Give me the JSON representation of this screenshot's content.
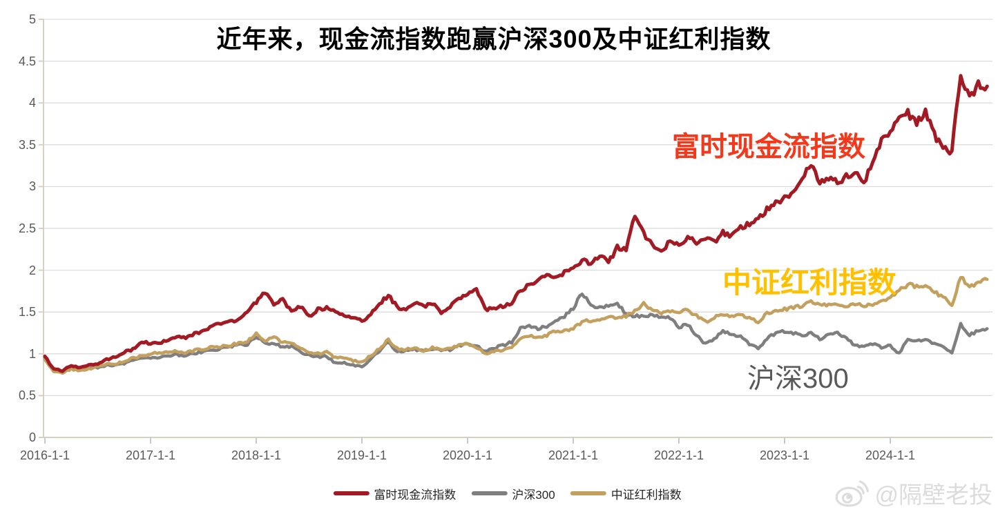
{
  "title": "近年来，现金流指数跑赢沪深300及中证红利指数",
  "annotations": {
    "cashflow": {
      "text": "富时现金流指数",
      "color": "#F2391C"
    },
    "dividend": {
      "text": "中证红利指数",
      "color": "#FFC000"
    },
    "csi300": {
      "text": "沪深300",
      "color": "#595959"
    }
  },
  "watermark": {
    "text": "@隔壁老投",
    "icon": "weibo-logo"
  },
  "colors": {
    "cashflow_line": "#A11A24",
    "csi300_line": "#7F7F7F",
    "dividend_line": "#C3A05E",
    "gridline": "#DCDCDC",
    "axis": "#D8D0C0",
    "tick": "#C9C9C9",
    "tick_text": "#595959"
  },
  "axes": {
    "y_ticks": [
      {
        "label": "5",
        "value": 5
      },
      {
        "label": "4.5",
        "value": 4.5
      },
      {
        "label": "4",
        "value": 4
      },
      {
        "label": "3.5",
        "value": 3.5
      },
      {
        "label": "3",
        "value": 3
      },
      {
        "label": "2.5",
        "value": 2.5
      },
      {
        "label": "2",
        "value": 2
      },
      {
        "label": "1.5",
        "value": 1.5
      },
      {
        "label": "1",
        "value": 1
      },
      {
        "label": "0.5",
        "value": 0.5
      },
      {
        "label": "0",
        "value": 0
      }
    ],
    "x_ticks": [
      "2016-1-1",
      "2017-1-1",
      "2018-1-1",
      "2019-1-1",
      "2020-1-1",
      "2021-1-1",
      "2022-1-1",
      "2023-1-1",
      "2024-1-1"
    ]
  },
  "legend": [
    {
      "label": "富时现金流指数",
      "color": "#A11A24"
    },
    {
      "label": "沪深300",
      "color": "#7F7F7F"
    },
    {
      "label": "中证红利指数",
      "color": "#C3A05E"
    }
  ],
  "chart_data": {
    "type": "line",
    "title": "近年来，现金流指数跑赢沪深300及中证红利指数",
    "xlabel": "",
    "ylabel": "",
    "ylim": [
      0,
      5
    ],
    "grid": "horizontal",
    "legend_position": "bottom",
    "x_unit": "month",
    "x": [
      "2016-01",
      "2016-02",
      "2016-03",
      "2016-04",
      "2016-05",
      "2016-06",
      "2016-07",
      "2016-08",
      "2016-09",
      "2016-10",
      "2016-11",
      "2016-12",
      "2017-01",
      "2017-02",
      "2017-03",
      "2017-04",
      "2017-05",
      "2017-06",
      "2017-07",
      "2017-08",
      "2017-09",
      "2017-10",
      "2017-11",
      "2017-12",
      "2018-01",
      "2018-02",
      "2018-03",
      "2018-04",
      "2018-05",
      "2018-06",
      "2018-07",
      "2018-08",
      "2018-09",
      "2018-10",
      "2018-11",
      "2018-12",
      "2019-01",
      "2019-02",
      "2019-03",
      "2019-04",
      "2019-05",
      "2019-06",
      "2019-07",
      "2019-08",
      "2019-09",
      "2019-10",
      "2019-11",
      "2019-12",
      "2020-01",
      "2020-02",
      "2020-03",
      "2020-04",
      "2020-05",
      "2020-06",
      "2020-07",
      "2020-08",
      "2020-09",
      "2020-10",
      "2020-11",
      "2020-12",
      "2021-01",
      "2021-02",
      "2021-03",
      "2021-04",
      "2021-05",
      "2021-06",
      "2021-07",
      "2021-08",
      "2021-09",
      "2021-10",
      "2021-11",
      "2021-12",
      "2022-01",
      "2022-02",
      "2022-03",
      "2022-04",
      "2022-05",
      "2022-06",
      "2022-07",
      "2022-08",
      "2022-09",
      "2022-10",
      "2022-11",
      "2022-12",
      "2023-01",
      "2023-02",
      "2023-03",
      "2023-04",
      "2023-05",
      "2023-06",
      "2023-07",
      "2023-08",
      "2023-09",
      "2023-10",
      "2023-11",
      "2023-12",
      "2024-01",
      "2024-02",
      "2024-03",
      "2024-04",
      "2024-05",
      "2024-06",
      "2024-07",
      "2024-08",
      "2024-09",
      "2024-10",
      "2024-11",
      "2024-12"
    ],
    "series": [
      {
        "name": "富时现金流指数",
        "color": "#A11A24",
        "values": [
          0.97,
          0.82,
          0.8,
          0.86,
          0.84,
          0.86,
          0.88,
          0.93,
          0.96,
          1.02,
          1.05,
          1.15,
          1.12,
          1.13,
          1.16,
          1.21,
          1.19,
          1.24,
          1.28,
          1.33,
          1.36,
          1.38,
          1.42,
          1.5,
          1.62,
          1.74,
          1.6,
          1.65,
          1.5,
          1.57,
          1.45,
          1.53,
          1.55,
          1.5,
          1.47,
          1.44,
          1.39,
          1.48,
          1.6,
          1.7,
          1.56,
          1.53,
          1.6,
          1.57,
          1.6,
          1.5,
          1.57,
          1.65,
          1.72,
          1.76,
          1.53,
          1.55,
          1.57,
          1.6,
          1.76,
          1.83,
          1.86,
          1.95,
          1.93,
          1.97,
          2.02,
          2.12,
          2.07,
          2.17,
          2.1,
          2.27,
          2.24,
          2.65,
          2.43,
          2.29,
          2.24,
          2.34,
          2.3,
          2.4,
          2.32,
          2.38,
          2.33,
          2.45,
          2.42,
          2.5,
          2.55,
          2.62,
          2.73,
          2.8,
          2.87,
          2.95,
          3.1,
          3.26,
          3.05,
          3.12,
          3.05,
          3.12,
          3.18,
          3.05,
          3.3,
          3.55,
          3.67,
          3.8,
          3.88,
          3.78,
          3.9,
          3.62,
          3.48,
          3.42,
          4.35,
          4.05,
          4.22,
          4.2
        ]
      },
      {
        "name": "沪深300",
        "color": "#7F7F7F",
        "values": [
          0.95,
          0.8,
          0.79,
          0.83,
          0.81,
          0.82,
          0.84,
          0.86,
          0.86,
          0.88,
          0.92,
          0.94,
          0.95,
          0.96,
          0.98,
          0.99,
          0.98,
          1.01,
          1.02,
          1.04,
          1.06,
          1.08,
          1.12,
          1.11,
          1.2,
          1.13,
          1.12,
          1.08,
          1.09,
          1.02,
          0.98,
          0.96,
          0.97,
          0.89,
          0.9,
          0.86,
          0.84,
          0.93,
          1.04,
          1.15,
          1.02,
          1.04,
          1.05,
          1.03,
          1.06,
          1.05,
          1.05,
          1.1,
          1.12,
          1.1,
          1.02,
          1.07,
          1.1,
          1.14,
          1.3,
          1.33,
          1.3,
          1.33,
          1.4,
          1.45,
          1.55,
          1.72,
          1.58,
          1.55,
          1.58,
          1.6,
          1.48,
          1.45,
          1.44,
          1.46,
          1.45,
          1.42,
          1.32,
          1.35,
          1.22,
          1.12,
          1.18,
          1.28,
          1.22,
          1.2,
          1.12,
          1.07,
          1.18,
          1.25,
          1.27,
          1.25,
          1.22,
          1.25,
          1.18,
          1.22,
          1.25,
          1.18,
          1.1,
          1.08,
          1.12,
          1.08,
          1.1,
          1.0,
          1.18,
          1.15,
          1.18,
          1.12,
          1.08,
          1.02,
          1.35,
          1.22,
          1.28,
          1.3
        ]
      },
      {
        "name": "中证红利指数",
        "color": "#C3A05E",
        "values": [
          0.93,
          0.78,
          0.77,
          0.82,
          0.8,
          0.82,
          0.85,
          0.88,
          0.88,
          0.91,
          0.95,
          0.97,
          1.0,
          1.01,
          1.02,
          1.03,
          1.01,
          1.04,
          1.06,
          1.08,
          1.09,
          1.1,
          1.13,
          1.15,
          1.24,
          1.16,
          1.2,
          1.13,
          1.14,
          1.06,
          1.02,
          1.0,
          1.02,
          0.95,
          0.96,
          0.92,
          0.9,
          0.98,
          1.06,
          1.17,
          1.06,
          1.05,
          1.07,
          1.04,
          1.07,
          1.05,
          1.06,
          1.1,
          1.12,
          1.08,
          1.0,
          1.03,
          1.05,
          1.08,
          1.18,
          1.22,
          1.2,
          1.22,
          1.27,
          1.28,
          1.3,
          1.38,
          1.4,
          1.42,
          1.44,
          1.42,
          1.45,
          1.52,
          1.6,
          1.52,
          1.49,
          1.52,
          1.5,
          1.52,
          1.45,
          1.38,
          1.44,
          1.48,
          1.45,
          1.48,
          1.42,
          1.38,
          1.48,
          1.5,
          1.53,
          1.55,
          1.58,
          1.63,
          1.6,
          1.58,
          1.6,
          1.57,
          1.6,
          1.57,
          1.6,
          1.63,
          1.68,
          1.75,
          1.83,
          1.8,
          1.82,
          1.74,
          1.68,
          1.58,
          1.93,
          1.8,
          1.86,
          1.89
        ]
      }
    ]
  }
}
